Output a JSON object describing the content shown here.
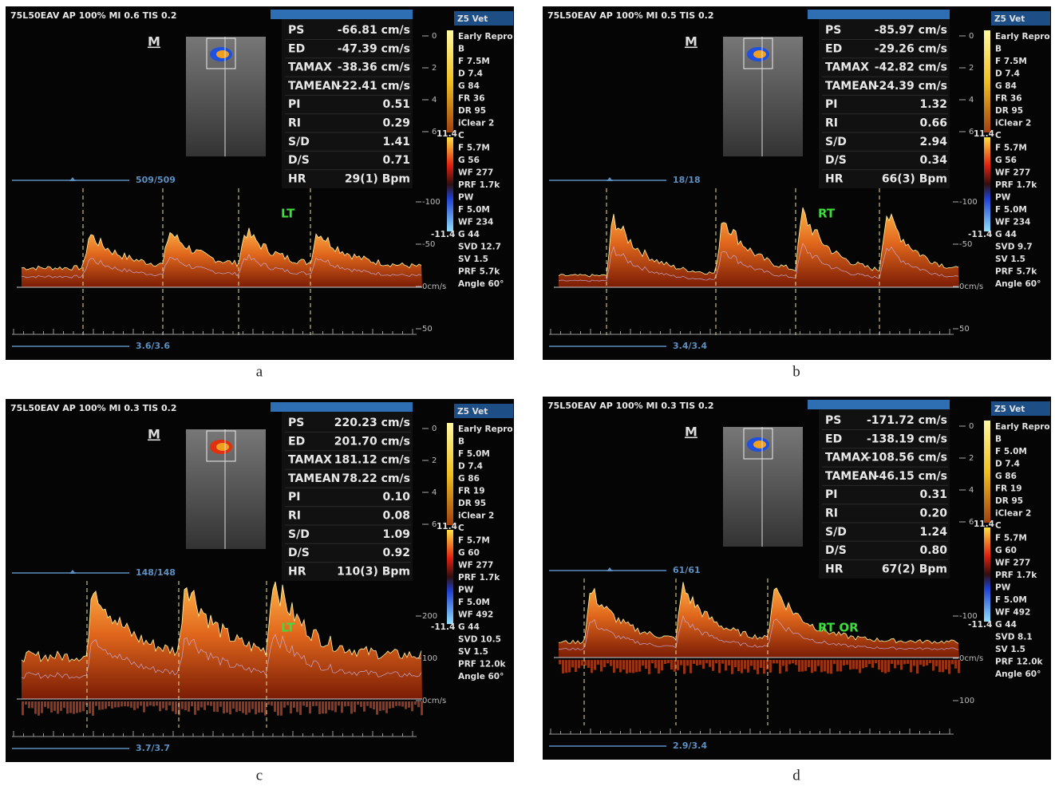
{
  "panels": [
    {
      "header": "75L50EAV AP 100% MI 0.6 TIS 0.2",
      "mode": "M",
      "measurements": [
        {
          "label": "PS",
          "value": "-66.81 cm/s"
        },
        {
          "label": "ED",
          "value": "-47.39 cm/s"
        },
        {
          "label": "TAMAX",
          "value": "-38.36 cm/s"
        },
        {
          "label": "TAMEAN",
          "value": "-22.41 cm/s"
        },
        {
          "label": "PI",
          "value": "0.51"
        },
        {
          "label": "RI",
          "value": "0.29"
        },
        {
          "label": "S/D",
          "value": "1.41"
        },
        {
          "label": "D/S",
          "value": "0.71"
        },
        {
          "label": "HR",
          "value": "29(1) Bpm"
        }
      ],
      "probe": "Z5 Vet",
      "settings": [
        "Early Repro",
        "B",
        "F 7.5M",
        "D 7.4",
        "G 84",
        "FR 36",
        "DR 95",
        "iClear 2",
        "C",
        "F 5.7M",
        "G 56",
        "WF 277",
        "PRF 1.7k",
        "PW",
        "F 5.0M",
        "WF 234",
        "G 44",
        "SVD 12.7",
        "SV 1.5",
        "PRF 5.7k",
        "Angle 60°"
      ],
      "depth_scale": [
        "0",
        "2",
        "4",
        "6"
      ],
      "color_scale": [
        "11.4",
        "-11.4"
      ],
      "velocity_scale": [
        "-100",
        "-50",
        "0cm/s",
        "50"
      ],
      "counter_top": "509/509",
      "counter_bottom": "3.6/3.6",
      "annotation": "LT",
      "caption": "a"
    },
    {
      "header": "75L50EAV AP 100% MI 0.5 TIS 0.2",
      "mode": "M",
      "measurements": [
        {
          "label": "PS",
          "value": "-85.97 cm/s"
        },
        {
          "label": "ED",
          "value": "-29.26 cm/s"
        },
        {
          "label": "TAMAX",
          "value": "-42.82 cm/s"
        },
        {
          "label": "TAMEAN",
          "value": "-24.39 cm/s"
        },
        {
          "label": "PI",
          "value": "1.32"
        },
        {
          "label": "RI",
          "value": "0.66"
        },
        {
          "label": "S/D",
          "value": "2.94"
        },
        {
          "label": "D/S",
          "value": "0.34"
        },
        {
          "label": "HR",
          "value": "66(3) Bpm"
        }
      ],
      "probe": "Z5 Vet",
      "settings": [
        "Early Repro",
        "B",
        "F 7.5M",
        "D 7.4",
        "G 84",
        "FR 36",
        "DR 95",
        "iClear 2",
        "C",
        "F 5.7M",
        "G 56",
        "WF 277",
        "PRF 1.7k",
        "PW",
        "F 5.0M",
        "WF 234",
        "G 44",
        "SVD 9.7",
        "SV 1.5",
        "PRF 5.7k",
        "Angle 60°"
      ],
      "depth_scale": [
        "0",
        "2",
        "4",
        "6"
      ],
      "color_scale": [
        "11.4",
        "-11.4"
      ],
      "velocity_scale": [
        "-100",
        "-50",
        "0cm/s",
        "50"
      ],
      "counter_top": "18/18",
      "counter_bottom": "3.4/3.4",
      "annotation": "RT",
      "caption": "b"
    },
    {
      "header": "75L50EAV AP 100% MI 0.3 TIS 0.2",
      "mode": "M",
      "measurements": [
        {
          "label": "PS",
          "value": "220.23 cm/s"
        },
        {
          "label": "ED",
          "value": "201.70 cm/s"
        },
        {
          "label": "TAMAX",
          "value": "181.12 cm/s"
        },
        {
          "label": "TAMEAN",
          "value": "78.22 cm/s"
        },
        {
          "label": "PI",
          "value": "0.10"
        },
        {
          "label": "RI",
          "value": "0.08"
        },
        {
          "label": "S/D",
          "value": "1.09"
        },
        {
          "label": "D/S",
          "value": "0.92"
        },
        {
          "label": "HR",
          "value": "110(3) Bpm"
        }
      ],
      "probe": "Z5 Vet",
      "settings": [
        "Early Repro",
        "B",
        "F 5.0M",
        "D 7.4",
        "G 86",
        "FR 19",
        "DR 95",
        "iClear 2",
        "C",
        "F 5.7M",
        "G 60",
        "WF 277",
        "PRF 1.7k",
        "PW",
        "F 5.0M",
        "WF 492",
        "G 44",
        "SVD 10.5",
        "SV 1.5",
        "PRF 12.0k",
        "Angle 60°"
      ],
      "depth_scale": [
        "0",
        "2",
        "4",
        "6"
      ],
      "color_scale": [
        "11.4",
        "-11.4"
      ],
      "velocity_scale": [
        "200",
        "100",
        "0cm/s"
      ],
      "counter_top": "148/148",
      "counter_bottom": "3.7/3.7",
      "annotation": "LT",
      "caption": "c"
    },
    {
      "header": "75L50EAV AP 100% MI 0.3 TIS 0.2",
      "mode": "M",
      "measurements": [
        {
          "label": "PS",
          "value": "-171.72 cm/s"
        },
        {
          "label": "ED",
          "value": "-138.19 cm/s"
        },
        {
          "label": "TAMAX",
          "value": "-108.56 cm/s"
        },
        {
          "label": "TAMEAN",
          "value": "-46.15 cm/s"
        },
        {
          "label": "PI",
          "value": "0.31"
        },
        {
          "label": "RI",
          "value": "0.20"
        },
        {
          "label": "S/D",
          "value": "1.24"
        },
        {
          "label": "D/S",
          "value": "0.80"
        },
        {
          "label": "HR",
          "value": "67(2) Bpm"
        }
      ],
      "probe": "Z5 Vet",
      "settings": [
        "Early Repro",
        "B",
        "F 5.0M",
        "D 7.4",
        "G 86",
        "FR 19",
        "DR 95",
        "iClear 2",
        "C",
        "F 5.7M",
        "G 60",
        "WF 277",
        "PRF 1.7k",
        "PW",
        "F 5.0M",
        "WF 492",
        "G 44",
        "SVD 8.1",
        "SV 1.5",
        "PRF 12.0k",
        "Angle 60°"
      ],
      "depth_scale": [
        "0",
        "2",
        "4",
        "6"
      ],
      "color_scale": [
        "11.4",
        "-11.4"
      ],
      "velocity_scale": [
        "-100",
        "0cm/s",
        "100"
      ],
      "counter_top": "61/61",
      "counter_bottom": "2.9/3.4",
      "annotation": "RT OR",
      "caption": "d"
    }
  ]
}
